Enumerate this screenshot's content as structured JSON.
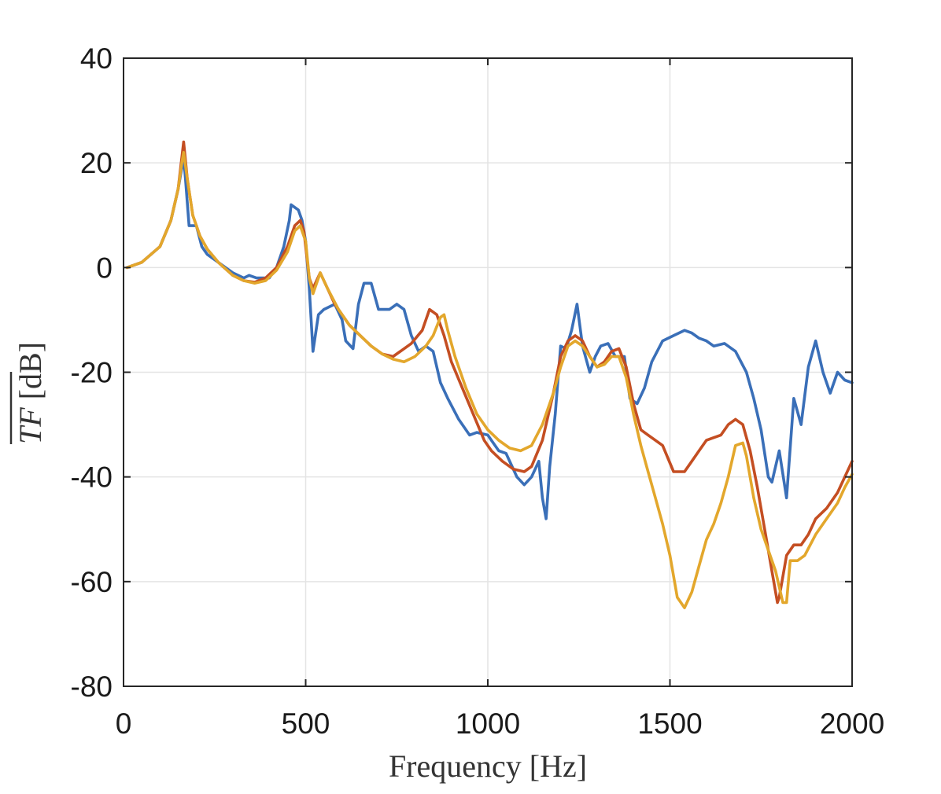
{
  "chart_data": {
    "type": "line",
    "title": "",
    "xlabel": "Frequency [Hz]",
    "ylabel": {
      "symbol": "TF",
      "unit": " [dB]"
    },
    "xlim": [
      0,
      2000
    ],
    "ylim": [
      -80,
      40
    ],
    "xticks": [
      0,
      500,
      1000,
      1500,
      2000
    ],
    "yticks": [
      -80,
      -60,
      -40,
      -20,
      0,
      20,
      40
    ],
    "grid": true,
    "legend": "none",
    "series": [
      {
        "color": "#3a6fb8",
        "points": [
          [
            10,
            0
          ],
          [
            50,
            1
          ],
          [
            100,
            4
          ],
          [
            130,
            9
          ],
          [
            150,
            15
          ],
          [
            165,
            21
          ],
          [
            170,
            17
          ],
          [
            180,
            8
          ],
          [
            200,
            8
          ],
          [
            215,
            4
          ],
          [
            230,
            2.5
          ],
          [
            260,
            1
          ],
          [
            300,
            -1
          ],
          [
            330,
            -2
          ],
          [
            345,
            -1.5
          ],
          [
            365,
            -2
          ],
          [
            400,
            -2
          ],
          [
            420,
            0
          ],
          [
            440,
            4
          ],
          [
            455,
            9
          ],
          [
            460,
            12
          ],
          [
            480,
            11
          ],
          [
            490,
            9
          ],
          [
            500,
            5
          ],
          [
            510,
            -4
          ],
          [
            520,
            -16
          ],
          [
            535,
            -9
          ],
          [
            550,
            -8
          ],
          [
            580,
            -7
          ],
          [
            600,
            -10
          ],
          [
            610,
            -14
          ],
          [
            630,
            -15.5
          ],
          [
            645,
            -7
          ],
          [
            660,
            -3
          ],
          [
            680,
            -3
          ],
          [
            700,
            -8
          ],
          [
            730,
            -8
          ],
          [
            750,
            -7
          ],
          [
            770,
            -8
          ],
          [
            790,
            -13
          ],
          [
            810,
            -16
          ],
          [
            830,
            -15
          ],
          [
            850,
            -16
          ],
          [
            870,
            -22
          ],
          [
            890,
            -25
          ],
          [
            920,
            -29
          ],
          [
            950,
            -32
          ],
          [
            970,
            -31.5
          ],
          [
            1000,
            -32
          ],
          [
            1010,
            -33
          ],
          [
            1030,
            -35
          ],
          [
            1050,
            -35.5
          ],
          [
            1060,
            -37
          ],
          [
            1080,
            -40
          ],
          [
            1100,
            -41.5
          ],
          [
            1120,
            -40
          ],
          [
            1140,
            -37
          ],
          [
            1150,
            -44
          ],
          [
            1160,
            -48
          ],
          [
            1170,
            -38
          ],
          [
            1185,
            -28
          ],
          [
            1200,
            -15
          ],
          [
            1215,
            -15.5
          ],
          [
            1230,
            -12
          ],
          [
            1245,
            -7
          ],
          [
            1260,
            -15
          ],
          [
            1280,
            -20
          ],
          [
            1295,
            -17
          ],
          [
            1310,
            -15
          ],
          [
            1330,
            -14.5
          ],
          [
            1350,
            -17
          ],
          [
            1375,
            -17
          ],
          [
            1390,
            -25
          ],
          [
            1410,
            -26
          ],
          [
            1430,
            -23
          ],
          [
            1450,
            -18
          ],
          [
            1480,
            -14
          ],
          [
            1510,
            -13
          ],
          [
            1540,
            -12
          ],
          [
            1560,
            -12.5
          ],
          [
            1580,
            -13.5
          ],
          [
            1600,
            -14
          ],
          [
            1620,
            -15
          ],
          [
            1650,
            -14.5
          ],
          [
            1680,
            -16
          ],
          [
            1710,
            -20
          ],
          [
            1730,
            -25
          ],
          [
            1750,
            -31
          ],
          [
            1770,
            -40
          ],
          [
            1780,
            -41
          ],
          [
            1800,
            -35
          ],
          [
            1820,
            -44
          ],
          [
            1840,
            -25
          ],
          [
            1860,
            -30
          ],
          [
            1880,
            -19
          ],
          [
            1900,
            -14
          ],
          [
            1920,
            -20
          ],
          [
            1940,
            -24
          ],
          [
            1960,
            -20
          ],
          [
            1980,
            -21.5
          ],
          [
            2000,
            -22
          ]
        ]
      },
      {
        "color": "#c44e22",
        "points": [
          [
            10,
            0
          ],
          [
            50,
            1
          ],
          [
            100,
            4
          ],
          [
            130,
            9
          ],
          [
            150,
            15
          ],
          [
            160,
            21
          ],
          [
            165,
            24
          ],
          [
            175,
            17
          ],
          [
            190,
            10
          ],
          [
            210,
            6
          ],
          [
            230,
            3.5
          ],
          [
            260,
            1
          ],
          [
            300,
            -1.5
          ],
          [
            330,
            -2.5
          ],
          [
            360,
            -2.8
          ],
          [
            390,
            -2
          ],
          [
            420,
            0
          ],
          [
            450,
            4
          ],
          [
            470,
            8
          ],
          [
            485,
            9
          ],
          [
            495,
            7
          ],
          [
            510,
            -2
          ],
          [
            520,
            -4
          ],
          [
            540,
            -1
          ],
          [
            560,
            -4
          ],
          [
            580,
            -7
          ],
          [
            600,
            -9
          ],
          [
            620,
            -11
          ],
          [
            650,
            -13
          ],
          [
            680,
            -15
          ],
          [
            710,
            -16.5
          ],
          [
            740,
            -17
          ],
          [
            760,
            -16
          ],
          [
            790,
            -14.5
          ],
          [
            820,
            -12
          ],
          [
            840,
            -8
          ],
          [
            860,
            -9
          ],
          [
            880,
            -13
          ],
          [
            900,
            -18
          ],
          [
            930,
            -23
          ],
          [
            960,
            -28
          ],
          [
            990,
            -33
          ],
          [
            1010,
            -35
          ],
          [
            1040,
            -37
          ],
          [
            1070,
            -38.5
          ],
          [
            1100,
            -39
          ],
          [
            1120,
            -38
          ],
          [
            1150,
            -33
          ],
          [
            1180,
            -24
          ],
          [
            1200,
            -17
          ],
          [
            1220,
            -14
          ],
          [
            1240,
            -13
          ],
          [
            1260,
            -14
          ],
          [
            1280,
            -17
          ],
          [
            1300,
            -19
          ],
          [
            1320,
            -18
          ],
          [
            1340,
            -16
          ],
          [
            1360,
            -15.5
          ],
          [
            1380,
            -19
          ],
          [
            1400,
            -26
          ],
          [
            1420,
            -31
          ],
          [
            1440,
            -32
          ],
          [
            1460,
            -33
          ],
          [
            1480,
            -34
          ],
          [
            1510,
            -39
          ],
          [
            1540,
            -39
          ],
          [
            1560,
            -37
          ],
          [
            1580,
            -35
          ],
          [
            1600,
            -33
          ],
          [
            1620,
            -32.5
          ],
          [
            1640,
            -32
          ],
          [
            1660,
            -30
          ],
          [
            1680,
            -29
          ],
          [
            1700,
            -30
          ],
          [
            1720,
            -35
          ],
          [
            1740,
            -42
          ],
          [
            1760,
            -50
          ],
          [
            1780,
            -58
          ],
          [
            1795,
            -64
          ],
          [
            1800,
            -63
          ],
          [
            1820,
            -55
          ],
          [
            1840,
            -53
          ],
          [
            1860,
            -53
          ],
          [
            1880,
            -51
          ],
          [
            1900,
            -48
          ],
          [
            1930,
            -46
          ],
          [
            1960,
            -43
          ],
          [
            1980,
            -40
          ],
          [
            2000,
            -37
          ]
        ]
      },
      {
        "color": "#e3a72c",
        "points": [
          [
            10,
            0
          ],
          [
            50,
            1
          ],
          [
            100,
            4
          ],
          [
            130,
            9
          ],
          [
            150,
            15
          ],
          [
            160,
            20
          ],
          [
            165,
            22
          ],
          [
            175,
            17
          ],
          [
            190,
            10
          ],
          [
            210,
            6
          ],
          [
            230,
            3.5
          ],
          [
            260,
            1
          ],
          [
            300,
            -1.5
          ],
          [
            330,
            -2.5
          ],
          [
            360,
            -3
          ],
          [
            390,
            -2.5
          ],
          [
            420,
            -0.5
          ],
          [
            450,
            3
          ],
          [
            470,
            7
          ],
          [
            485,
            8
          ],
          [
            500,
            5
          ],
          [
            510,
            -2
          ],
          [
            520,
            -5
          ],
          [
            540,
            -1
          ],
          [
            560,
            -4
          ],
          [
            590,
            -8
          ],
          [
            620,
            -11
          ],
          [
            650,
            -13
          ],
          [
            680,
            -15
          ],
          [
            710,
            -16.5
          ],
          [
            740,
            -17.5
          ],
          [
            770,
            -18
          ],
          [
            800,
            -17
          ],
          [
            830,
            -15
          ],
          [
            850,
            -13
          ],
          [
            870,
            -9.5
          ],
          [
            880,
            -9
          ],
          [
            890,
            -12
          ],
          [
            910,
            -17
          ],
          [
            940,
            -23
          ],
          [
            970,
            -28
          ],
          [
            1000,
            -31
          ],
          [
            1030,
            -33
          ],
          [
            1060,
            -34.5
          ],
          [
            1090,
            -35
          ],
          [
            1120,
            -34
          ],
          [
            1150,
            -30
          ],
          [
            1180,
            -24
          ],
          [
            1200,
            -19
          ],
          [
            1220,
            -15
          ],
          [
            1240,
            -14
          ],
          [
            1260,
            -15
          ],
          [
            1280,
            -17
          ],
          [
            1300,
            -19
          ],
          [
            1320,
            -18.5
          ],
          [
            1340,
            -17
          ],
          [
            1360,
            -17
          ],
          [
            1380,
            -21
          ],
          [
            1400,
            -28
          ],
          [
            1420,
            -34
          ],
          [
            1440,
            -39
          ],
          [
            1460,
            -44
          ],
          [
            1480,
            -49
          ],
          [
            1500,
            -55
          ],
          [
            1520,
            -63
          ],
          [
            1540,
            -65
          ],
          [
            1560,
            -62
          ],
          [
            1580,
            -57
          ],
          [
            1600,
            -52
          ],
          [
            1620,
            -49
          ],
          [
            1640,
            -45
          ],
          [
            1660,
            -40
          ],
          [
            1680,
            -34
          ],
          [
            1700,
            -33.5
          ],
          [
            1710,
            -36
          ],
          [
            1730,
            -44
          ],
          [
            1750,
            -50
          ],
          [
            1770,
            -54
          ],
          [
            1790,
            -58
          ],
          [
            1810,
            -64
          ],
          [
            1820,
            -64
          ],
          [
            1830,
            -56
          ],
          [
            1850,
            -56
          ],
          [
            1870,
            -55
          ],
          [
            1900,
            -51
          ],
          [
            1930,
            -48
          ],
          [
            1960,
            -45
          ],
          [
            1980,
            -42
          ],
          [
            2000,
            -39.5
          ]
        ]
      }
    ]
  }
}
